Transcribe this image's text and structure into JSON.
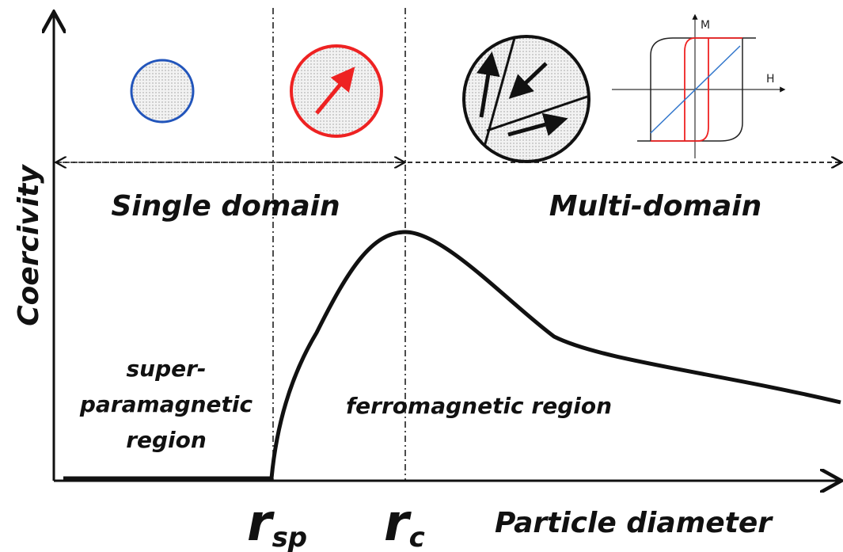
{
  "axes": {
    "y_label": "Coercivity",
    "x_label": "Particle diameter"
  },
  "regions": {
    "single": "Single domain",
    "multi": "Multi-domain",
    "superparamagnetic": [
      "super-",
      "paramagnetic",
      "region"
    ],
    "ferromagnetic": "ferromagnetic region"
  },
  "markers": [
    {
      "symbol": "r",
      "subscript": "sp"
    },
    {
      "symbol": "r",
      "subscript": "c"
    }
  ],
  "hysteresis": {
    "m_label": "M",
    "h_label": "H"
  }
}
